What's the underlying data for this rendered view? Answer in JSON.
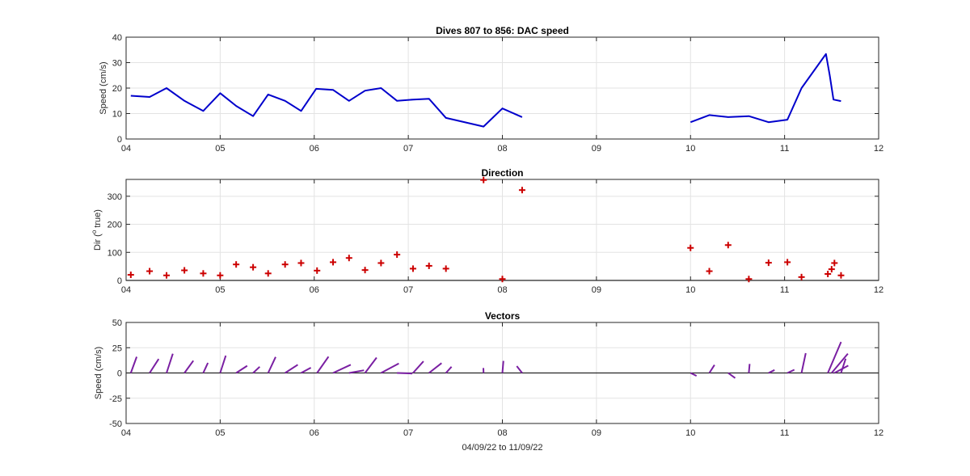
{
  "chart_data": [
    {
      "type": "line",
      "title": "Dives 807 to 856: DAC speed",
      "ylabel": "Speed (cm/s)",
      "xlabel": "",
      "xlim": [
        4,
        12
      ],
      "ylim": [
        0,
        40
      ],
      "xticks": [
        4,
        5,
        6,
        7,
        8,
        9,
        10,
        11,
        12
      ],
      "xtick_labels": [
        "04",
        "05",
        "06",
        "07",
        "08",
        "09",
        "10",
        "11",
        "12"
      ],
      "yticks": [
        0,
        10,
        20,
        30,
        40
      ],
      "ytick_labels": [
        "0",
        "10",
        "20",
        "30",
        "40"
      ],
      "grid": true,
      "color": "#0000cc",
      "series": [
        {
          "x": [
            4.05,
            4.25,
            4.43,
            4.62,
            4.82,
            5.0,
            5.17,
            5.35,
            5.51,
            5.69,
            5.86,
            6.02,
            6.2,
            6.37,
            6.54,
            6.71,
            6.88,
            7.05,
            7.22,
            7.4,
            7.8,
            8.0,
            8.21
          ],
          "y": [
            17,
            16.5,
            20,
            15,
            11,
            18,
            13,
            9,
            17.5,
            15,
            11,
            19.7,
            19.3,
            15,
            19,
            20,
            15,
            15.5,
            15.8,
            8.3,
            4.9,
            12,
            8.6
          ]
        },
        {
          "x": [
            10.0,
            10.2,
            10.4,
            10.62,
            10.83,
            11.03,
            11.18,
            11.44,
            11.48,
            11.52,
            11.6
          ],
          "y": [
            6.6,
            9.4,
            8.6,
            9.0,
            6.6,
            7.6,
            20,
            33.4,
            25,
            15.5,
            14.9
          ]
        }
      ]
    },
    {
      "type": "scatter",
      "title": "Direction",
      "ylabel": "Dir (o true)",
      "ylabel_parts": {
        "before": "Dir (",
        "sup": "o",
        "after": " true)"
      },
      "xlim": [
        4,
        12
      ],
      "ylim": [
        0,
        360
      ],
      "xticks": [
        4,
        5,
        6,
        7,
        8,
        9,
        10,
        11,
        12
      ],
      "xtick_labels": [
        "04",
        "05",
        "06",
        "07",
        "08",
        "09",
        "10",
        "11",
        "12"
      ],
      "yticks": [
        0,
        100,
        200,
        300
      ],
      "ytick_labels": [
        "0",
        "100",
        "200",
        "300"
      ],
      "grid": true,
      "marker": "+",
      "color": "#cc0000",
      "x": [
        4.05,
        4.25,
        4.43,
        4.62,
        4.82,
        5.0,
        5.17,
        5.35,
        5.51,
        5.69,
        5.86,
        6.03,
        6.2,
        6.37,
        6.54,
        6.71,
        6.88,
        7.05,
        7.22,
        7.4,
        7.8,
        8.0,
        8.21,
        10.0,
        10.2,
        10.4,
        10.62,
        10.83,
        11.03,
        11.18,
        11.46,
        11.5,
        11.53,
        11.6
      ],
      "y": [
        20,
        33,
        18,
        36,
        25,
        18,
        57,
        47,
        25,
        57,
        62,
        35,
        65,
        80,
        37,
        62,
        92,
        42,
        52,
        42,
        358,
        5,
        322,
        116,
        33,
        126,
        5,
        63,
        65,
        12,
        23,
        40,
        62,
        18
      ]
    },
    {
      "type": "vectors",
      "title": "Vectors",
      "ylabel": "Speed (cm/s)",
      "xlabel": "04/09/22 to 11/09/22",
      "xlim": [
        4,
        12
      ],
      "ylim": [
        -50,
        50
      ],
      "xticks": [
        4,
        5,
        6,
        7,
        8,
        9,
        10,
        11,
        12
      ],
      "xtick_labels": [
        "04",
        "05",
        "06",
        "07",
        "08",
        "09",
        "10",
        "11",
        "12"
      ],
      "yticks": [
        -50,
        -25,
        0,
        25,
        50
      ],
      "ytick_labels": [
        "-50",
        "-25",
        "0",
        "25",
        "50"
      ],
      "grid": true,
      "color": "#7a1fa2",
      "x": [
        4.05,
        4.25,
        4.43,
        4.62,
        4.82,
        5.0,
        5.17,
        5.35,
        5.51,
        5.69,
        5.86,
        6.03,
        6.2,
        6.37,
        6.54,
        6.71,
        6.88,
        7.05,
        7.22,
        7.4,
        7.8,
        8.0,
        8.21,
        10.0,
        10.2,
        10.4,
        10.62,
        10.83,
        11.03,
        11.18,
        11.46,
        11.5,
        11.53,
        11.6
      ],
      "speed": [
        17,
        16.5,
        20,
        15,
        11,
        18,
        13,
        9,
        17.5,
        15,
        11,
        19.7,
        19.3,
        15,
        19,
        20,
        15,
        15.5,
        15.8,
        8.3,
        4.9,
        12,
        8.6,
        6.6,
        9.4,
        8.6,
        9.0,
        6.6,
        7.6,
        20,
        33.4,
        25,
        15.5,
        14.9
      ],
      "dir": [
        20,
        33,
        18,
        36,
        25,
        18,
        57,
        47,
        25,
        57,
        62,
        35,
        65,
        80,
        37,
        62,
        92,
        42,
        52,
        42,
        358,
        5,
        322,
        116,
        33,
        126,
        5,
        63,
        65,
        12,
        23,
        40,
        62,
        18
      ]
    }
  ]
}
